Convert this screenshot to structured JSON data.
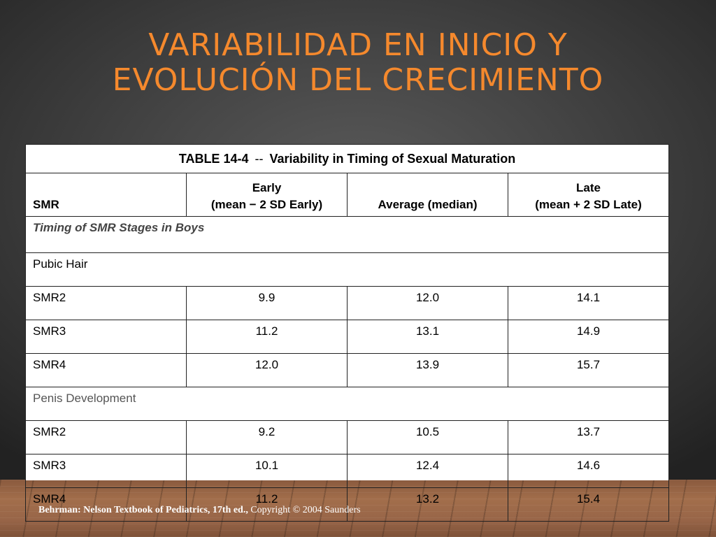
{
  "slide": {
    "title_line1": "VARIABILIDAD EN INICIO Y",
    "title_line2": "EVOLUCIÓN DEL CRECIMIENTO"
  },
  "table": {
    "caption_id": "TABLE 14-4",
    "caption_sep": "--",
    "caption_text": "Variability in Timing of Sexual Maturation",
    "headers": {
      "smr": "SMR",
      "early_line1": "Early",
      "early_line2": "(mean − 2 SD Early)",
      "average": "Average (median)",
      "late_line1": "Late",
      "late_line2": "(mean + 2 SD Late)"
    },
    "section": "Timing of SMR Stages in Boys",
    "groups": [
      {
        "name": "Pubic Hair",
        "rows": [
          {
            "smr": "SMR2",
            "early": "9.9",
            "average": "12.0",
            "late": "14.1"
          },
          {
            "smr": "SMR3",
            "early": "11.2",
            "average": "13.1",
            "late": "14.9"
          },
          {
            "smr": "SMR4",
            "early": "12.0",
            "average": "13.9",
            "late": "15.7"
          }
        ]
      },
      {
        "name": "Penis Development",
        "rows": [
          {
            "smr": "SMR2",
            "early": "9.2",
            "average": "10.5",
            "late": "13.7"
          },
          {
            "smr": "SMR3",
            "early": "10.1",
            "average": "12.4",
            "late": "14.6"
          },
          {
            "smr": "SMR4",
            "early": "11.2",
            "average": "13.2",
            "late": "15.4"
          }
        ]
      }
    ]
  },
  "citation": {
    "bold": "Behrman: Nelson Textbook of Pediatrics, 17th ed.,",
    "rest": " Copyright © 2004 Saunders"
  },
  "colors": {
    "title": "#f5892d",
    "background": "#3a3a3a",
    "floor": "#9a6846"
  }
}
